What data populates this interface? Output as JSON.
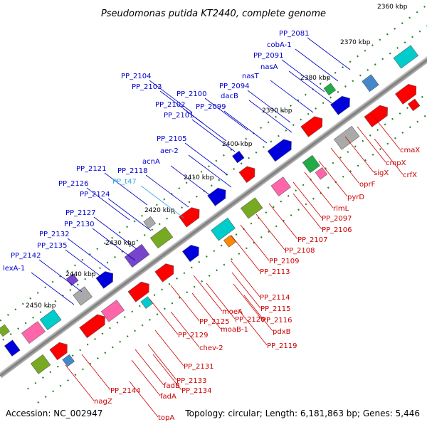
{
  "title": "Pseudomonas putida KT2440, complete genome",
  "accession": "Accession: NC_002947",
  "topology": "Topology: circular; Length: 6,181,863 bp; Genes: 5,446",
  "colors": {
    "backbone": "#888888",
    "forward_label": "#0000cc",
    "reverse_label": "#cc0000",
    "highlight_label": "#33aadd",
    "tick_dots": "#228822"
  },
  "ticks": [
    "2360 kbp",
    "2370 kbp",
    "2380 kbp",
    "2390 kbp",
    "2400 kbp",
    "2410 kbp",
    "2420 kbp",
    "2430 kbp",
    "2440 kbp",
    "2450 kbp"
  ],
  "forward_labels": [
    "PP_2081",
    "cobA-1",
    "PP_2091",
    "nasA",
    "nasT",
    "PP_2094",
    "dacB",
    "PP_2100",
    "PP_2099",
    "PP_2104",
    "PP_2103",
    "PP_2102",
    "PP_2101",
    "PP_2105",
    "aer-2",
    "acnA",
    "PP_2121",
    "PP_2118",
    "PP_t47",
    "PP_2126",
    "PP_2124",
    "PP_2127",
    "PP_2130",
    "PP_2132",
    "PP_2135",
    "PP_2142",
    "lexA-1"
  ],
  "reverse_labels": [
    "cmaX",
    "cmpX",
    "crfX",
    "sigX",
    "oprF",
    "pyrD",
    "rlmL",
    "PP_2097",
    "PP_2106",
    "PP_2107",
    "PP_2108",
    "PP_2109",
    "PP_2113",
    "PP_2114",
    "PP_2115",
    "PP_2116",
    "moeA",
    "PP_2120",
    "moaB-1",
    "pdxB",
    "PP_2119",
    "PP_2125",
    "PP_2129",
    "chev-2",
    "PP_2131",
    "PP_2133",
    "PP_2134",
    "fadB",
    "fadA",
    "PP_2144",
    "nagZ",
    "topA"
  ]
}
